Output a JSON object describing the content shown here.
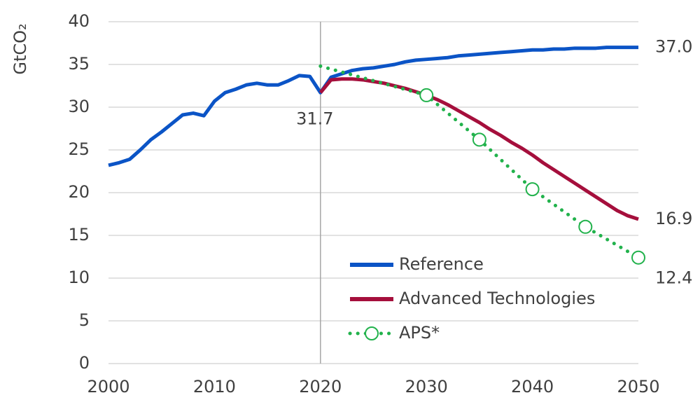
{
  "chart_data": {
    "type": "line",
    "y_label": "GtCO₂",
    "x": [
      2000,
      2001,
      2002,
      2003,
      2004,
      2005,
      2006,
      2007,
      2008,
      2009,
      2010,
      2011,
      2012,
      2013,
      2014,
      2015,
      2016,
      2017,
      2018,
      2019,
      2020,
      2021,
      2022,
      2023,
      2024,
      2025,
      2026,
      2027,
      2028,
      2029,
      2030,
      2031,
      2032,
      2033,
      2034,
      2035,
      2036,
      2037,
      2038,
      2039,
      2040,
      2041,
      2042,
      2043,
      2044,
      2045,
      2046,
      2047,
      2048,
      2049,
      2050
    ],
    "series": [
      {
        "name": "Reference",
        "color": "#0b54c6",
        "style": "solid",
        "values": [
          23.2,
          23.5,
          23.9,
          25.0,
          26.2,
          27.1,
          28.1,
          29.1,
          29.3,
          29.0,
          30.7,
          31.7,
          32.1,
          32.6,
          32.8,
          32.6,
          32.6,
          33.1,
          33.7,
          33.6,
          31.7,
          33.5,
          33.9,
          34.3,
          34.5,
          34.6,
          34.8,
          35.0,
          35.3,
          35.5,
          35.6,
          35.7,
          35.8,
          36.0,
          36.1,
          36.2,
          36.3,
          36.4,
          36.5,
          36.6,
          36.7,
          36.7,
          36.8,
          36.8,
          36.9,
          36.9,
          36.9,
          37.0,
          37.0,
          37.0,
          37.0
        ],
        "value_labels": [
          null,
          null,
          null,
          null,
          null,
          null,
          null,
          null,
          null,
          null,
          null,
          null,
          null,
          null,
          null,
          null,
          null,
          null,
          null,
          null,
          "31.7",
          null,
          null,
          null,
          null,
          null,
          null,
          null,
          null,
          null,
          null,
          null,
          null,
          null,
          null,
          null,
          null,
          null,
          null,
          null,
          null,
          null,
          null,
          null,
          null,
          null,
          null,
          null,
          null,
          null,
          "37.0"
        ]
      },
      {
        "name": "Advanced Technologies",
        "color": "#a50f3c",
        "style": "solid",
        "values": [
          null,
          null,
          null,
          null,
          null,
          null,
          null,
          null,
          null,
          null,
          null,
          null,
          null,
          null,
          null,
          null,
          null,
          null,
          null,
          null,
          31.7,
          33.2,
          33.3,
          33.3,
          33.2,
          33.0,
          32.8,
          32.5,
          32.2,
          31.8,
          31.4,
          30.9,
          30.3,
          29.6,
          28.9,
          28.2,
          27.4,
          26.7,
          25.9,
          25.2,
          24.4,
          23.5,
          22.7,
          21.9,
          21.1,
          20.3,
          19.5,
          18.7,
          17.9,
          17.3,
          16.9
        ],
        "value_labels": [
          null,
          null,
          null,
          null,
          null,
          null,
          null,
          null,
          null,
          null,
          null,
          null,
          null,
          null,
          null,
          null,
          null,
          null,
          null,
          null,
          null,
          null,
          null,
          null,
          null,
          null,
          null,
          null,
          null,
          null,
          null,
          null,
          null,
          null,
          null,
          null,
          null,
          null,
          null,
          null,
          null,
          null,
          null,
          null,
          null,
          null,
          null,
          null,
          null,
          null,
          "16.9"
        ]
      },
      {
        "name": "APS*",
        "color": "#22b24c",
        "style": "dotted",
        "x": [
          2020,
          2030,
          2035,
          2040,
          2045,
          2050
        ],
        "values": [
          34.8,
          31.4,
          26.2,
          20.4,
          16.0,
          12.4
        ],
        "markers": [
          false,
          true,
          true,
          true,
          true,
          true
        ],
        "value_labels": [
          null,
          null,
          null,
          null,
          null,
          "12.4"
        ]
      }
    ],
    "xlim": [
      2000,
      2050
    ],
    "xticks": [
      2000,
      2010,
      2020,
      2030,
      2040,
      2050
    ],
    "ylim": [
      0,
      40
    ],
    "yticks": [
      0,
      5,
      10,
      15,
      20,
      25,
      30,
      35,
      40
    ],
    "grid": true,
    "vline": 2020,
    "legend": "lower right"
  }
}
